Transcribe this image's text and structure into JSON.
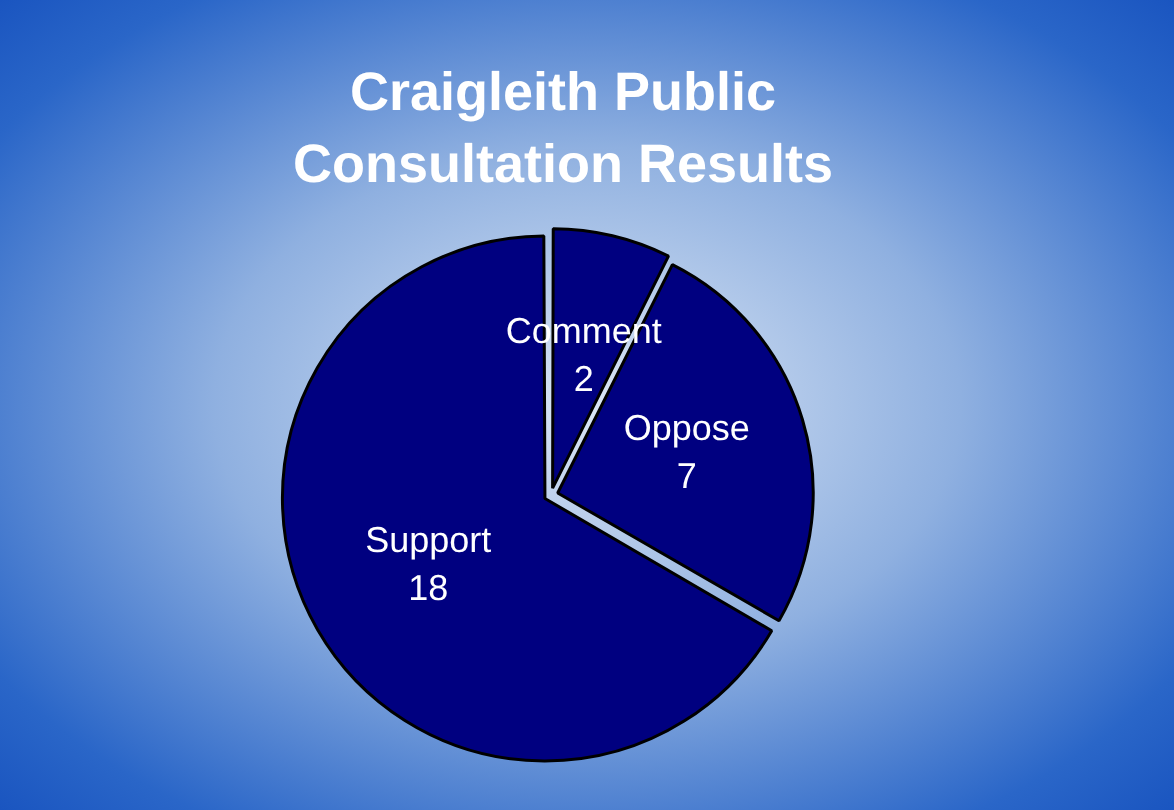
{
  "chart_data": {
    "type": "pie",
    "title": "Craigleith Public Consultation Results",
    "categories": [
      "Comment",
      "Oppose",
      "Support"
    ],
    "values": [
      2,
      7,
      18
    ],
    "colors": [
      "#000080",
      "#000080",
      "#000080"
    ],
    "data_labels": true,
    "legend": false
  }
}
